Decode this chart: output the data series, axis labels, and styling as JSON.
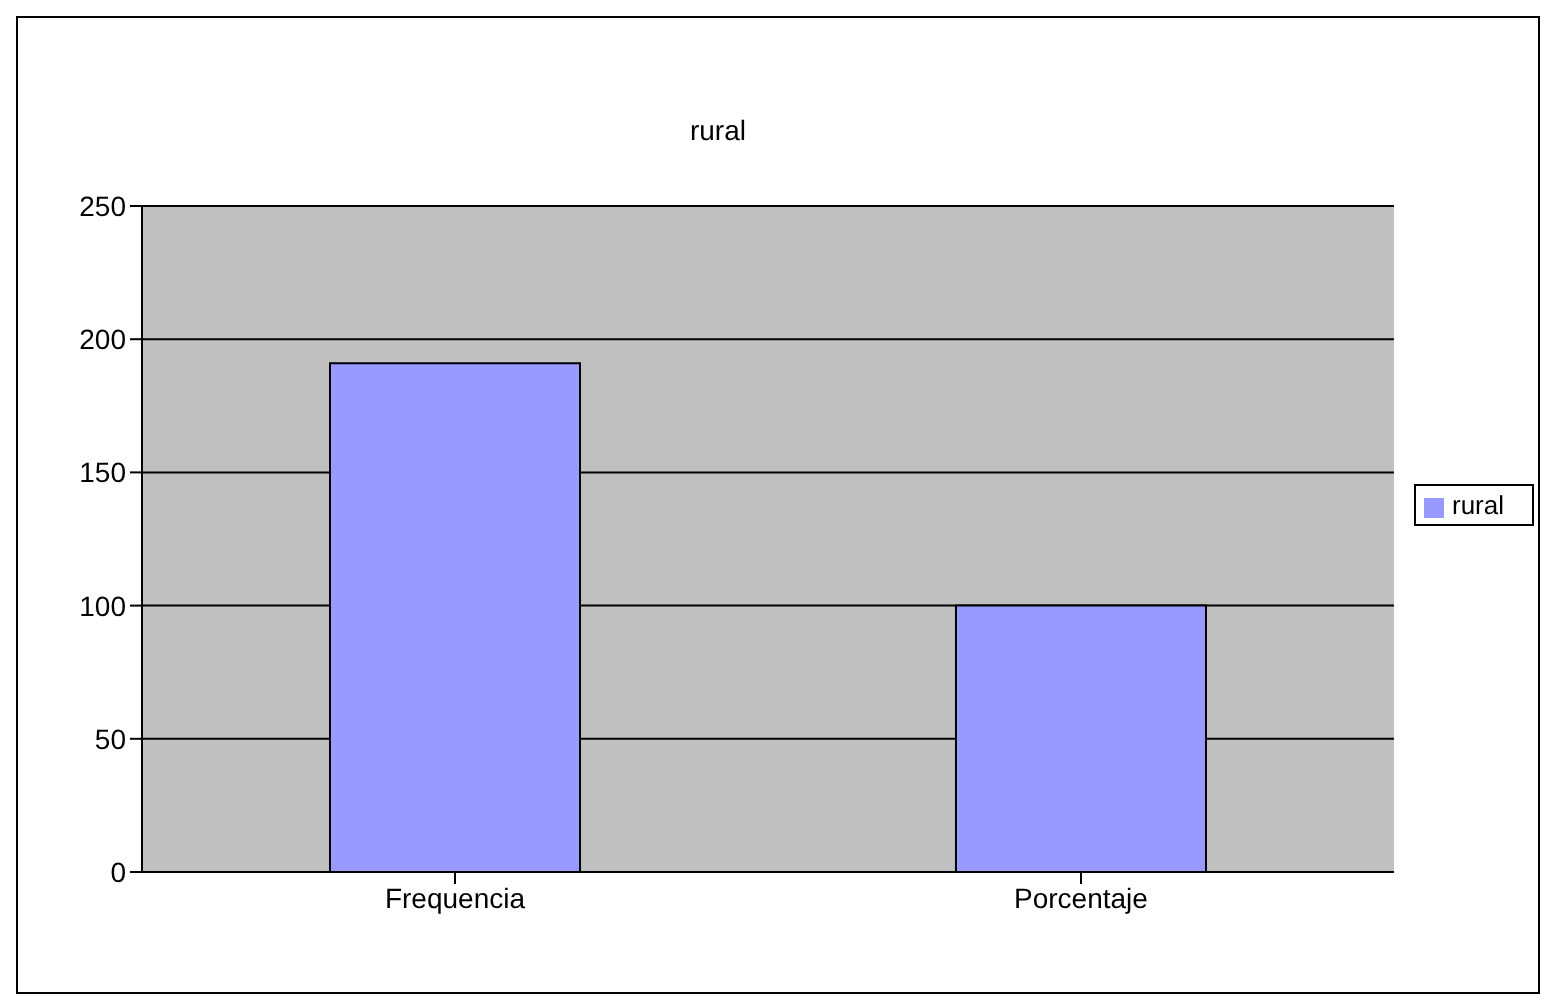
{
  "chart_data": {
    "type": "bar",
    "title": "rural",
    "categories": [
      "Frequencia",
      "Porcentaje"
    ],
    "series": [
      {
        "name": "rural",
        "color": "#9999ff",
        "values": [
          191,
          100
        ]
      }
    ],
    "ylim": [
      0,
      250
    ],
    "yticks": [
      0,
      50,
      100,
      150,
      200,
      250
    ],
    "grid": "y",
    "legend": "right"
  }
}
